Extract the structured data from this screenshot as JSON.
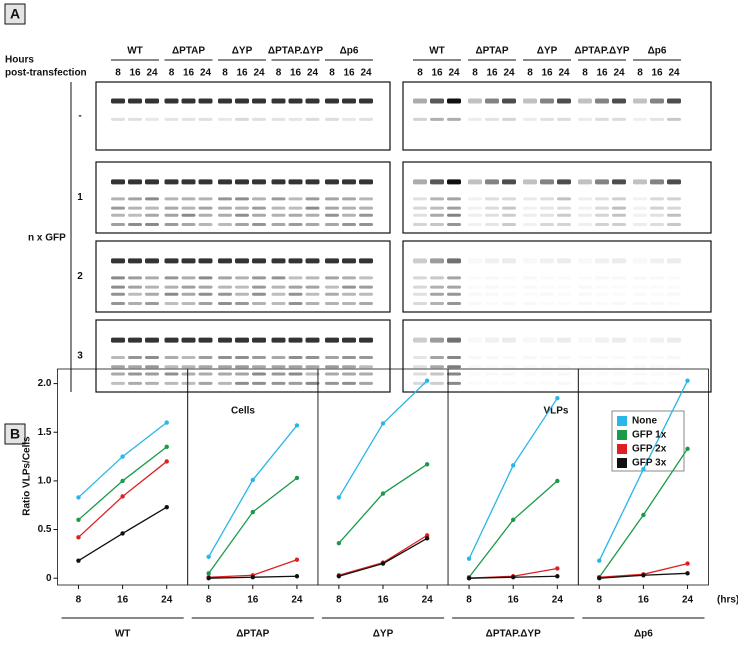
{
  "panel_a": {
    "label": "A",
    "hours_label": [
      "Hours",
      "post-transfection"
    ],
    "groups": [
      "WT",
      "ΔPTAP",
      "ΔYP",
      "ΔPTAP.ΔYP",
      "Δp6"
    ],
    "times": [
      "8",
      "16",
      "24"
    ],
    "rows": [
      "-",
      "1",
      "2",
      "3"
    ],
    "row_axis": "n x GFP",
    "blots": [
      "Cells",
      "VLPs"
    ]
  },
  "panel_b": {
    "label": "B",
    "y_label": "Ratio VLPs/Cells",
    "x_unit": "(hrs)"
  },
  "chart_data": [
    {
      "type": "line",
      "title": "WT",
      "x": [
        8,
        16,
        24
      ],
      "xlim": [
        4.2,
        27.8
      ],
      "xticks": [
        8,
        16,
        24
      ],
      "ylim": [
        -0.07,
        2.15
      ],
      "yticks": [
        0,
        {
          "value": 0.5,
          "label": "0.5"
        },
        {
          "value": 1,
          "label": "1.0"
        },
        {
          "value": 1.5,
          "label": "1.5"
        },
        {
          "value": 2,
          "label": "2.0"
        }
      ],
      "series": [
        {
          "name": "None",
          "color": "#29b6e8",
          "values": [
            0.83,
            1.25,
            1.6
          ]
        },
        {
          "name": "GFP 1x",
          "color": "#1a9a4a",
          "values": [
            0.6,
            1.0,
            1.35
          ]
        },
        {
          "name": "GFP 2x",
          "color": "#e02020",
          "values": [
            0.42,
            0.84,
            1.2
          ]
        },
        {
          "name": "GFP 3x",
          "color": "#111111",
          "values": [
            0.18,
            0.46,
            0.73
          ]
        }
      ]
    },
    {
      "type": "line",
      "title": "ΔPTAP",
      "x": [
        8,
        16,
        24
      ],
      "xlim": [
        4.2,
        27.8
      ],
      "xticks": [
        8,
        16,
        24
      ],
      "ylim": [
        -0.07,
        2.15
      ],
      "series": [
        {
          "name": "None",
          "color": "#29b6e8",
          "values": [
            0.22,
            1.01,
            1.57
          ]
        },
        {
          "name": "GFP 1x",
          "color": "#1a9a4a",
          "values": [
            0.05,
            0.68,
            1.03
          ]
        },
        {
          "name": "GFP 2x",
          "color": "#e02020",
          "values": [
            0.01,
            0.03,
            0.19
          ]
        },
        {
          "name": "GFP 3x",
          "color": "#111111",
          "values": [
            0.0,
            0.01,
            0.02
          ]
        }
      ]
    },
    {
      "type": "line",
      "title": "ΔYP",
      "x": [
        8,
        16,
        24
      ],
      "xlim": [
        4.2,
        27.8
      ],
      "xticks": [
        8,
        16,
        24
      ],
      "ylim": [
        -0.07,
        2.15
      ],
      "series": [
        {
          "name": "None",
          "color": "#29b6e8",
          "values": [
            0.83,
            1.59,
            2.03
          ]
        },
        {
          "name": "GFP 1x",
          "color": "#1a9a4a",
          "values": [
            0.36,
            0.87,
            1.17
          ]
        },
        {
          "name": "GFP 2x",
          "color": "#e02020",
          "values": [
            0.03,
            0.16,
            0.44
          ]
        },
        {
          "name": "GFP 3x",
          "color": "#111111",
          "values": [
            0.02,
            0.15,
            0.41
          ]
        }
      ]
    },
    {
      "type": "line",
      "title": "ΔPTAP.ΔYP",
      "x": [
        8,
        16,
        24
      ],
      "xlim": [
        4.2,
        27.8
      ],
      "xticks": [
        8,
        16,
        24
      ],
      "ylim": [
        -0.07,
        2.15
      ],
      "series": [
        {
          "name": "None",
          "color": "#29b6e8",
          "values": [
            0.2,
            1.16,
            1.85
          ]
        },
        {
          "name": "GFP 1x",
          "color": "#1a9a4a",
          "values": [
            0.01,
            0.6,
            1.0
          ]
        },
        {
          "name": "GFP 2x",
          "color": "#e02020",
          "values": [
            0.0,
            0.02,
            0.1
          ]
        },
        {
          "name": "GFP 3x",
          "color": "#111111",
          "values": [
            0.0,
            0.01,
            0.02
          ]
        }
      ]
    },
    {
      "type": "line",
      "title": "Δp6",
      "x": [
        8,
        16,
        24
      ],
      "xlim": [
        4.2,
        27.8
      ],
      "xticks": [
        8,
        16,
        24
      ],
      "ylim": [
        -0.07,
        2.15
      ],
      "series": [
        {
          "name": "None",
          "color": "#29b6e8",
          "values": [
            0.18,
            1.12,
            2.03
          ]
        },
        {
          "name": "GFP 1x",
          "color": "#1a9a4a",
          "values": [
            0.01,
            0.65,
            1.33
          ]
        },
        {
          "name": "GFP 2x",
          "color": "#e02020",
          "values": [
            0.01,
            0.04,
            0.15
          ]
        },
        {
          "name": "GFP 3x",
          "color": "#111111",
          "values": [
            0.0,
            0.03,
            0.05
          ]
        }
      ]
    }
  ]
}
